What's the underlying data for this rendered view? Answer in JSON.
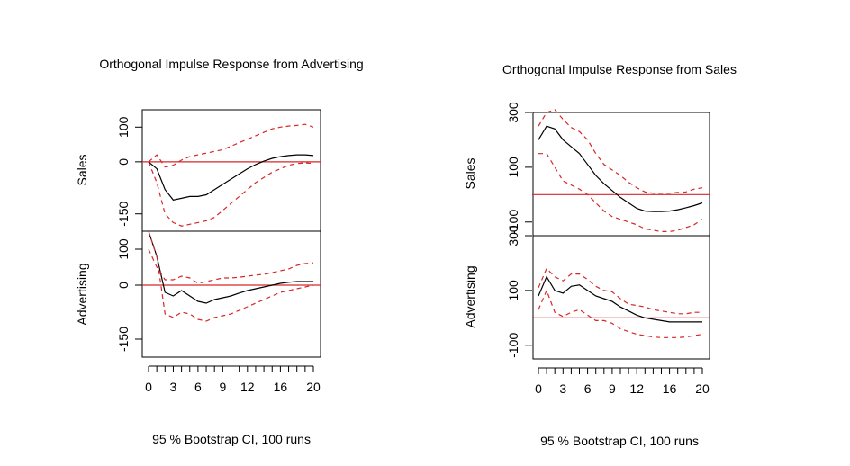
{
  "chart_data": [
    {
      "type": "line",
      "title": "Orthogonal Impulse Response from Advertising",
      "footer": "95 % Bootstrap CI,  100 runs",
      "x": [
        0,
        1,
        2,
        3,
        4,
        5,
        6,
        7,
        8,
        9,
        10,
        11,
        12,
        13,
        14,
        15,
        16,
        17,
        18,
        19,
        20
      ],
      "x_ticks": [
        0,
        3,
        6,
        9,
        12,
        16,
        20
      ],
      "xlim": [
        0,
        20
      ],
      "reference_line": 0,
      "colors": {
        "response": "#000000",
        "ci": "#d62728",
        "zero": "#d62728"
      },
      "panels": [
        {
          "ylabel": "Sales",
          "ylim": [
            -200,
            150
          ],
          "y_ticks": [
            100,
            0,
            -150
          ],
          "series": [
            {
              "values": [
                0,
                -20,
                -80,
                -110,
                -105,
                -100,
                -100,
                -95,
                -80,
                -65,
                -50,
                -35,
                -20,
                -8,
                2,
                10,
                15,
                18,
                20,
                20,
                18
              ]
            },
            {
              "values": [
                0,
                20,
                -15,
                -10,
                5,
                15,
                20,
                25,
                30,
                35,
                45,
                55,
                65,
                75,
                85,
                95,
                100,
                103,
                105,
                108,
                100
              ]
            },
            {
              "values": [
                0,
                -60,
                -150,
                -175,
                -185,
                -180,
                -175,
                -170,
                -160,
                -140,
                -120,
                -100,
                -80,
                -60,
                -45,
                -30,
                -20,
                -10,
                -5,
                -3,
                -5
              ]
            }
          ]
        },
        {
          "ylabel": "Advertising",
          "ylim": [
            -200,
            150
          ],
          "y_ticks": [
            100,
            0,
            -150
          ],
          "series": [
            {
              "values": [
                150,
                80,
                -20,
                -30,
                -15,
                -30,
                -45,
                -50,
                -40,
                -35,
                -30,
                -22,
                -15,
                -10,
                -5,
                0,
                5,
                8,
                10,
                10,
                10
              ]
            },
            {
              "values": [
                100,
                50,
                15,
                15,
                25,
                20,
                5,
                10,
                15,
                20,
                20,
                22,
                25,
                28,
                30,
                35,
                40,
                45,
                55,
                60,
                62
              ]
            },
            {
              "values": [
                150,
                80,
                -80,
                -90,
                -75,
                -80,
                -95,
                -100,
                -90,
                -85,
                -80,
                -70,
                -60,
                -50,
                -40,
                -30,
                -20,
                -15,
                -10,
                -5,
                0
              ]
            }
          ]
        }
      ]
    },
    {
      "type": "line",
      "title": "Orthogonal Impulse Response from Sales",
      "footer": "95 % Bootstrap CI,  100 runs",
      "x": [
        0,
        1,
        2,
        3,
        4,
        5,
        6,
        7,
        8,
        9,
        10,
        11,
        12,
        13,
        14,
        15,
        16,
        17,
        18,
        19,
        20
      ],
      "x_ticks": [
        0,
        3,
        6,
        9,
        12,
        16,
        20
      ],
      "xlim": [
        0,
        20
      ],
      "reference_line": 0,
      "colors": {
        "response": "#000000",
        "ci": "#d62728",
        "zero": "#d62728"
      },
      "panels": [
        {
          "ylabel": "Sales",
          "ylim": [
            -150,
            300
          ],
          "y_ticks": [
            300,
            100,
            -100
          ],
          "series": [
            {
              "values": [
                200,
                250,
                240,
                200,
                175,
                150,
                110,
                70,
                40,
                15,
                -10,
                -30,
                -50,
                -60,
                -62,
                -62,
                -60,
                -55,
                -48,
                -40,
                -30
              ]
            },
            {
              "values": [
                250,
                300,
                310,
                275,
                245,
                230,
                200,
                150,
                110,
                90,
                70,
                45,
                25,
                10,
                5,
                5,
                5,
                8,
                10,
                20,
                25
              ]
            },
            {
              "values": [
                150,
                150,
                100,
                50,
                35,
                20,
                0,
                -30,
                -60,
                -80,
                -90,
                -100,
                -110,
                -125,
                -130,
                -135,
                -135,
                -130,
                -120,
                -110,
                -90
              ]
            }
          ]
        },
        {
          "ylabel": "Advertising",
          "ylim": [
            -150,
            300
          ],
          "y_ticks": [
            300,
            100,
            -100
          ],
          "series": [
            {
              "values": [
                80,
                150,
                100,
                90,
                115,
                120,
                100,
                80,
                70,
                60,
                40,
                25,
                10,
                0,
                -5,
                -10,
                -15,
                -15,
                -15,
                -15,
                -15
              ]
            },
            {
              "values": [
                110,
                180,
                150,
                135,
                160,
                160,
                140,
                115,
                100,
                95,
                70,
                50,
                45,
                40,
                30,
                25,
                20,
                15,
                15,
                20,
                20
              ]
            },
            {
              "values": [
                30,
                100,
                20,
                5,
                20,
                30,
                10,
                -10,
                -10,
                -20,
                -40,
                -50,
                -60,
                -65,
                -70,
                -72,
                -72,
                -72,
                -70,
                -65,
                -60
              ]
            }
          ]
        }
      ]
    }
  ]
}
